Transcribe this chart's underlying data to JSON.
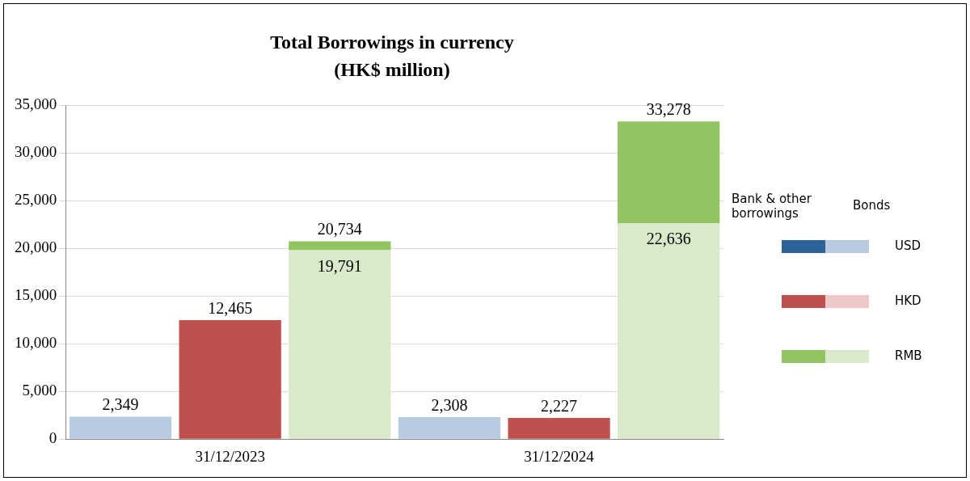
{
  "chart_data": {
    "type": "bar",
    "title": "Total Borrowings in currency\n(HK$ million)",
    "categories": [
      null,
      "31/12/2023",
      null,
      null,
      "31/12/2024",
      null
    ],
    "stacked": true,
    "ylim": [
      0,
      35000
    ],
    "yticks": [
      {
        "value": 0,
        "label": "0"
      },
      {
        "value": 5000,
        "label": "5,000"
      },
      {
        "value": 10000,
        "label": "10,000"
      },
      {
        "value": 15000,
        "label": "15,000"
      },
      {
        "value": 20000,
        "label": "20,000"
      },
      {
        "value": 25000,
        "label": "25,000"
      },
      {
        "value": 30000,
        "label": "30,000"
      },
      {
        "value": 35000,
        "label": "35,000"
      }
    ],
    "grid": "y",
    "legend": "right",
    "annotations": [
      "USD",
      "HKD",
      "RMB"
    ],
    "series": [
      {
        "name": "Bonds",
        "colors": [
          "#b9cbe0",
          "#efc8c7",
          "#d9eacb",
          "#b9cbe0",
          "#efc8c7",
          "#d9eacb"
        ],
        "values": [
          2349,
          null,
          19791,
          2308,
          null,
          22636
        ],
        "value_labels": [
          "2,349",
          null,
          "19,791",
          "2,308",
          null,
          "22,636"
        ]
      },
      {
        "name": "Bank & other borrowings",
        "colors": [
          "#2e6399",
          "#c0504d",
          "#92c462",
          "#2e6399",
          "#c0504d",
          "#92c462"
        ],
        "values": [
          null,
          12465,
          943,
          null,
          2227,
          10642
        ],
        "value_labels": [
          null,
          "12,465",
          null,
          null,
          "2,227",
          null
        ]
      }
    ],
    "totals": [
      null,
      null,
      "20,734",
      null,
      null,
      "33,278"
    ]
  }
}
